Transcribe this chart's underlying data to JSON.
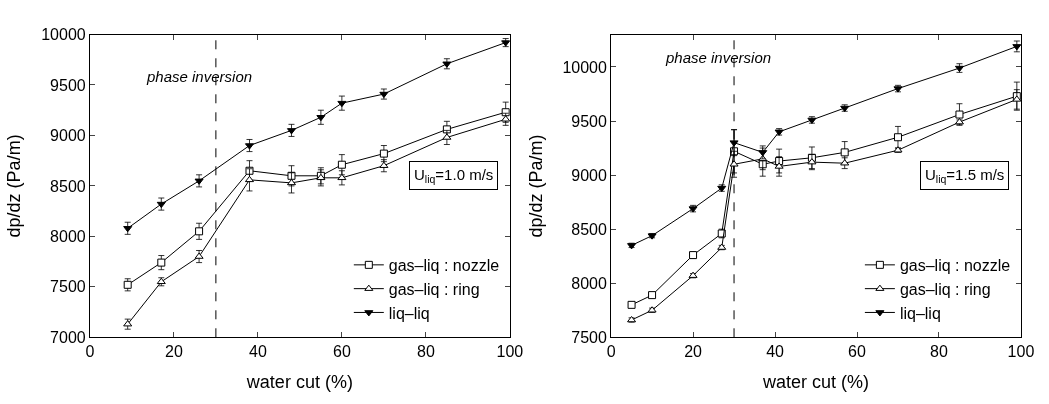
{
  "chart_data": [
    {
      "type": "line",
      "xlabel": "water cut (%)",
      "ylabel": "dp/dz (Pa/m)",
      "xlim": [
        0,
        100
      ],
      "xticks": [
        0,
        20,
        40,
        60,
        80,
        100
      ],
      "ylim": [
        7000,
        10000
      ],
      "yticks": [
        7000,
        7500,
        8000,
        8500,
        9000,
        9500,
        10000
      ],
      "legend": "bottom right",
      "line_style": "solid",
      "annotations": [
        "phase inversion",
        "U$_{liq}$=1.0 m/s"
      ],
      "ref_lines": [
        {
          "axis": "x",
          "value": 30,
          "color": "#000000",
          "line_style": "dashed"
        }
      ],
      "series": [
        {
          "name": "gas–liq : nozzle",
          "color": "#000000",
          "marker": "square",
          "x": [
            9,
            17,
            26,
            38,
            48,
            55,
            60,
            70,
            85,
            99
          ],
          "values": [
            7520,
            7740,
            8050,
            8650,
            8600,
            8600,
            8710,
            8820,
            9060,
            9230
          ],
          "errors": [
            60,
            70,
            80,
            100,
            100,
            80,
            100,
            80,
            80,
            100
          ]
        },
        {
          "name": "gas–liq : ring",
          "color": "#000000",
          "marker": "triangle",
          "x": [
            9,
            17,
            26,
            38,
            48,
            55,
            60,
            70,
            85,
            99
          ],
          "values": [
            7130,
            7550,
            7800,
            8560,
            8530,
            8580,
            8580,
            8700,
            8980,
            9160
          ],
          "errors": [
            50,
            40,
            60,
            110,
            100,
            80,
            70,
            60,
            70,
            60
          ]
        },
        {
          "name": "liq–liq",
          "color": "#000000",
          "marker": "triangle-down",
          "x": [
            9,
            17,
            26,
            38,
            48,
            55,
            60,
            70,
            85,
            99
          ],
          "values": [
            8080,
            8320,
            8550,
            8900,
            9050,
            9180,
            9320,
            9410,
            9710,
            9920
          ],
          "errors": [
            60,
            60,
            60,
            60,
            60,
            70,
            70,
            50,
            50,
            40
          ]
        }
      ]
    },
    {
      "type": "line",
      "xlabel": "water cut (%)",
      "ylabel": "dp/dz (Pa/m)",
      "xlim": [
        0,
        100
      ],
      "xticks": [
        0,
        20,
        40,
        60,
        80,
        100
      ],
      "ylim": [
        7500,
        10300
      ],
      "yticks": [
        7500,
        8000,
        8500,
        9000,
        9500,
        10000
      ],
      "legend": "bottom right",
      "line_style": "solid",
      "annotations": [
        "phase inversion",
        "U$_{liq}$=1.5 m/s"
      ],
      "ref_lines": [
        {
          "axis": "x",
          "value": 30,
          "color": "#000000",
          "line_style": "dashed"
        }
      ],
      "series": [
        {
          "name": "gas–liq : nozzle",
          "color": "#000000",
          "marker": "square",
          "x": [
            5,
            10,
            20,
            27,
            30,
            37,
            41,
            49,
            57,
            70,
            85,
            99
          ],
          "values": [
            7800,
            7890,
            8260,
            8460,
            9220,
            9100,
            9130,
            9160,
            9210,
            9350,
            9560,
            9730
          ],
          "errors": [
            null,
            null,
            30,
            40,
            200,
            110,
            110,
            100,
            100,
            100,
            100,
            130
          ]
        },
        {
          "name": "gas–liq : ring",
          "color": "#000000",
          "marker": "triangle",
          "x": [
            5,
            10,
            20,
            27,
            30,
            37,
            41,
            49,
            57,
            70,
            85,
            99
          ],
          "values": [
            7660,
            7750,
            8070,
            8330,
            9100,
            9150,
            9080,
            9120,
            9110,
            9230,
            9490,
            9700
          ],
          "errors": [
            20,
            20,
            20,
            20,
            120,
            100,
            90,
            70,
            50,
            20,
            20,
            90
          ]
        },
        {
          "name": "liq–liq",
          "color": "#000000",
          "marker": "triangle-down",
          "x": [
            5,
            10,
            20,
            27,
            30,
            37,
            41,
            49,
            57,
            70,
            85,
            99
          ],
          "values": [
            8350,
            8440,
            8690,
            8880,
            9300,
            9210,
            9400,
            9510,
            9620,
            9800,
            9990,
            10190
          ],
          "errors": [
            20,
            20,
            30,
            30,
            120,
            60,
            30,
            30,
            30,
            30,
            40,
            50
          ]
        }
      ]
    }
  ]
}
